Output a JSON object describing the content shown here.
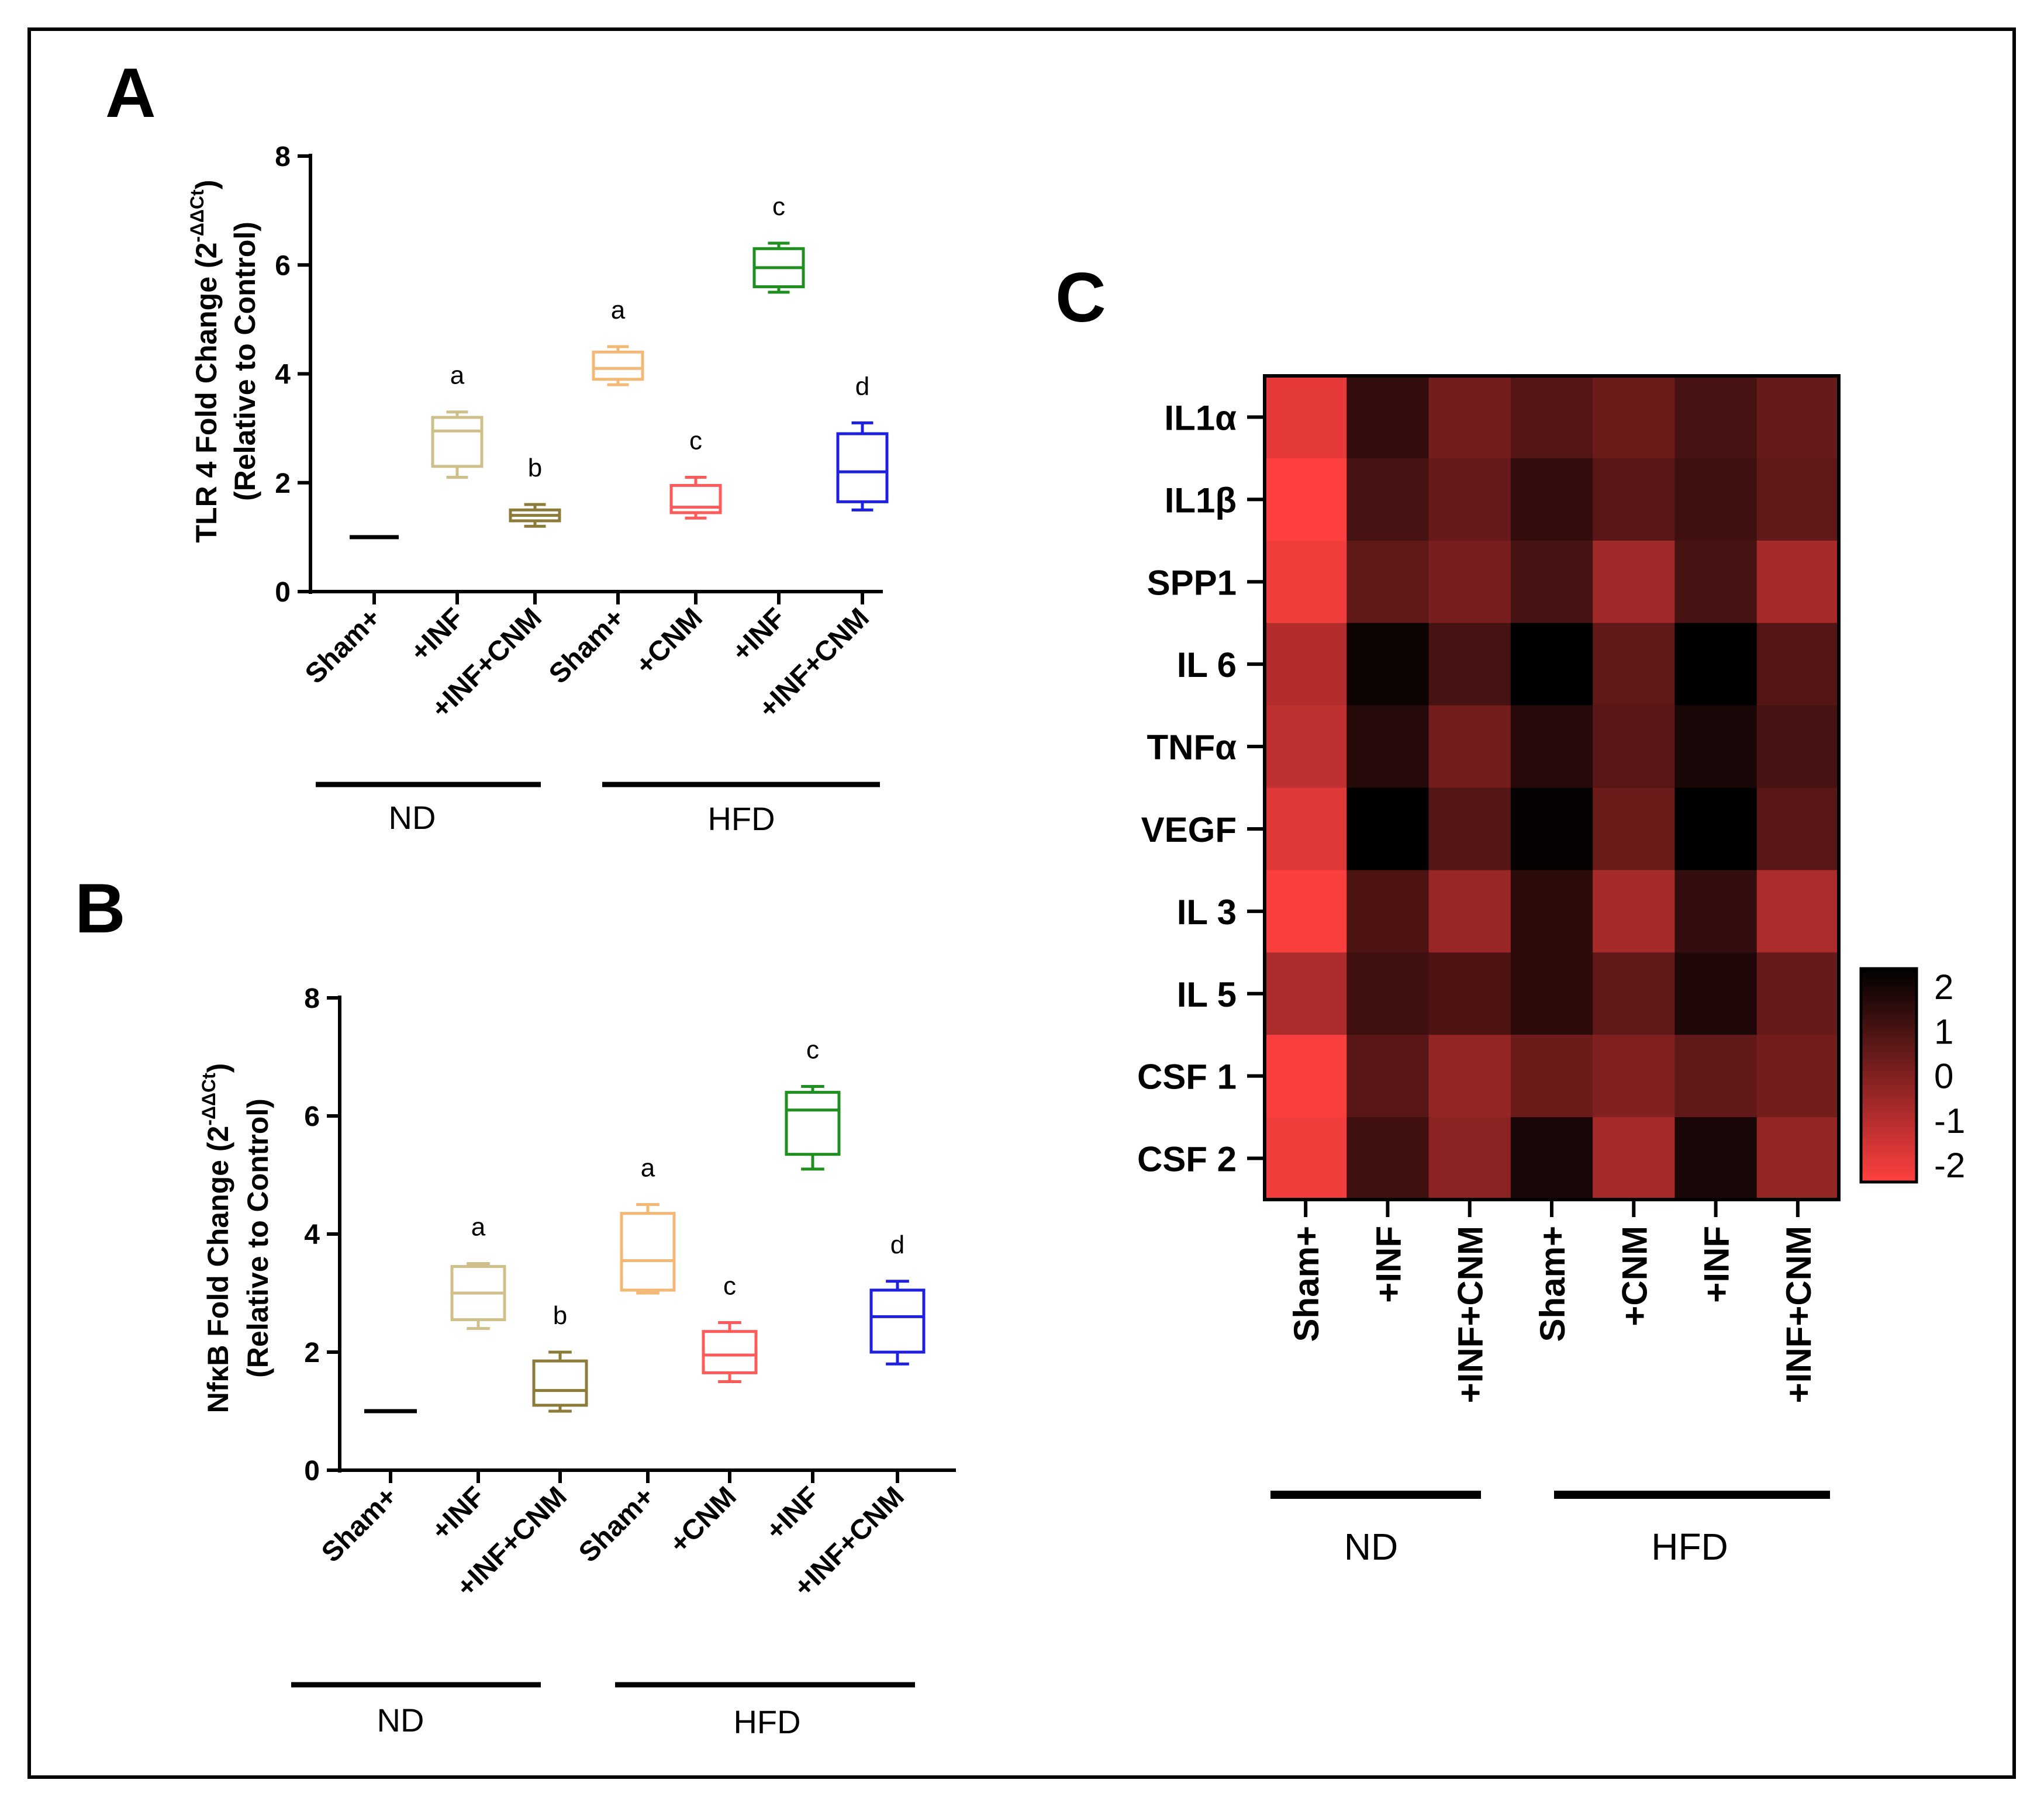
{
  "panels": {
    "A": {
      "letter": "A",
      "ylabel_main": "TLR 4 Fold Change (2",
      "ylabel_sup": "-ΔΔCt",
      "ylabel_close": ")",
      "ylabel_line2": "(Relative to Control)",
      "group_nd": "ND",
      "group_hfd": "HFD"
    },
    "B": {
      "letter": "B",
      "ylabel_main": "NfκB Fold Change (2",
      "ylabel_sup": "-ΔΔCt",
      "ylabel_close": ")",
      "ylabel_line2": "(Relative to Control)",
      "group_nd": "ND",
      "group_hfd": "HFD"
    },
    "C": {
      "letter": "C",
      "group_nd": "ND",
      "group_hfd": "HFD"
    }
  },
  "chart_data": [
    {
      "id": "A",
      "type": "box",
      "title": "",
      "ylabel": "TLR 4 Fold Change (2-ΔΔCt) (Relative to Control)",
      "ylim": [
        0,
        8
      ],
      "yticks": [
        "0",
        "2",
        "4",
        "6",
        "8"
      ],
      "categories": [
        "Sham+",
        "+INF",
        "+INF+CNM",
        "Sham+",
        "+CNM",
        "+INF",
        "+INF+CNM"
      ],
      "groups": [
        {
          "name": "ND",
          "categories": [
            0,
            1,
            2
          ]
        },
        {
          "name": "HFD",
          "categories": [
            3,
            4,
            5,
            6
          ]
        }
      ],
      "boxes": [
        {
          "min": 1.0,
          "q1": 1.0,
          "median": 1.0,
          "q3": 1.0,
          "max": 1.0,
          "sig": "",
          "color": "#000000"
        },
        {
          "min": 2.1,
          "q1": 2.3,
          "median": 2.95,
          "q3": 3.2,
          "max": 3.3,
          "sig": "a",
          "color": "#cfc08a"
        },
        {
          "min": 1.2,
          "q1": 1.3,
          "median": 1.4,
          "q3": 1.5,
          "max": 1.6,
          "sig": "b",
          "color": "#8c7c3a"
        },
        {
          "min": 3.8,
          "q1": 3.9,
          "median": 4.1,
          "q3": 4.4,
          "max": 4.5,
          "sig": "a",
          "color": "#f4b876"
        },
        {
          "min": 1.35,
          "q1": 1.45,
          "median": 1.55,
          "q3": 1.95,
          "max": 2.1,
          "sig": "c",
          "color": "#ff5a5a"
        },
        {
          "min": 5.5,
          "q1": 5.6,
          "median": 5.95,
          "q3": 6.3,
          "max": 6.4,
          "sig": "c",
          "color": "#1f8f1f"
        },
        {
          "min": 1.5,
          "q1": 1.65,
          "median": 2.2,
          "q3": 2.9,
          "max": 3.1,
          "sig": "d",
          "color": "#1f1fe0"
        }
      ]
    },
    {
      "id": "B",
      "type": "box",
      "title": "",
      "ylabel": "NfκB Fold Change (2-ΔΔCt) (Relative to Control)",
      "ylim": [
        0,
        8
      ],
      "yticks": [
        "0",
        "2",
        "4",
        "6",
        "8"
      ],
      "categories": [
        "Sham+",
        "+INF",
        "+INF+CNM",
        "Sham+",
        "+CNM",
        "+INF",
        "+INF+CNM"
      ],
      "groups": [
        {
          "name": "ND",
          "categories": [
            0,
            1,
            2
          ]
        },
        {
          "name": "HFD",
          "categories": [
            3,
            4,
            5,
            6
          ]
        }
      ],
      "boxes": [
        {
          "min": 1.0,
          "q1": 1.0,
          "median": 1.0,
          "q3": 1.0,
          "max": 1.0,
          "sig": "",
          "color": "#000000"
        },
        {
          "min": 2.4,
          "q1": 2.55,
          "median": 3.0,
          "q3": 3.45,
          "max": 3.5,
          "sig": "a",
          "color": "#cfc08a"
        },
        {
          "min": 1.0,
          "q1": 1.1,
          "median": 1.35,
          "q3": 1.85,
          "max": 2.0,
          "sig": "b",
          "color": "#8c7c3a"
        },
        {
          "min": 3.0,
          "q1": 3.05,
          "median": 3.55,
          "q3": 4.35,
          "max": 4.5,
          "sig": "a",
          "color": "#f4b876"
        },
        {
          "min": 1.5,
          "q1": 1.65,
          "median": 1.95,
          "q3": 2.35,
          "max": 2.5,
          "sig": "c",
          "color": "#ff5a5a"
        },
        {
          "min": 5.1,
          "q1": 5.35,
          "median": 6.1,
          "q3": 6.4,
          "max": 6.5,
          "sig": "c",
          "color": "#1f8f1f"
        },
        {
          "min": 1.8,
          "q1": 2.0,
          "median": 2.6,
          "q3": 3.05,
          "max": 3.2,
          "sig": "d",
          "color": "#1f1fe0"
        }
      ]
    },
    {
      "id": "C",
      "type": "heatmap",
      "title": "",
      "rows": [
        "IL1α",
        "IL1β",
        "SPP1",
        "IL 6",
        "TNFα",
        "VEGF",
        "IL 3",
        "IL 5",
        "CSF 1",
        "CSF 2"
      ],
      "columns": [
        "Sham+",
        "+INF",
        "+INF+CNM",
        "Sham+",
        "+CNM",
        "+INF",
        "+INF+CNM"
      ],
      "groups": [
        {
          "name": "ND",
          "columns": [
            0,
            1,
            2
          ]
        },
        {
          "name": "HFD",
          "columns": [
            3,
            4,
            5,
            6
          ]
        }
      ],
      "values": [
        [
          -1.6,
          1.2,
          0.2,
          0.7,
          0.3,
          0.9,
          0.4
        ],
        [
          -2.0,
          0.9,
          0.4,
          1.2,
          0.6,
          1.0,
          0.5
        ],
        [
          -1.8,
          0.5,
          0.1,
          0.9,
          -0.5,
          0.9,
          -0.6
        ],
        [
          -0.8,
          1.8,
          0.9,
          2.1,
          0.5,
          2.0,
          0.7
        ],
        [
          -1.0,
          1.4,
          0.2,
          1.4,
          0.6,
          1.6,
          0.9
        ],
        [
          -1.5,
          2.2,
          0.7,
          1.9,
          0.3,
          2.1,
          0.6
        ],
        [
          -1.9,
          0.8,
          -0.4,
          1.3,
          -0.6,
          1.2,
          -0.7
        ],
        [
          -0.7,
          1.0,
          0.8,
          1.3,
          0.5,
          1.5,
          0.4
        ],
        [
          -1.9,
          0.6,
          -0.3,
          0.3,
          0.0,
          0.5,
          0.2
        ],
        [
          -1.8,
          1.0,
          -0.2,
          1.6,
          -0.6,
          1.6,
          -0.3
        ]
      ],
      "colorbar": {
        "min": -2,
        "max": 2,
        "ticks": [
          "2",
          "1",
          "0",
          "-1",
          "-2"
        ],
        "low_color": "#ff4040",
        "high_color": "#000000"
      }
    }
  ]
}
